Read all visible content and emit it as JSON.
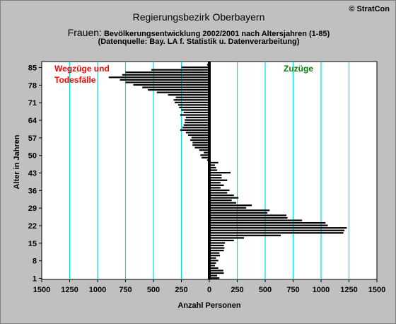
{
  "header": {
    "title": "Regierungsbezirk Oberbayern",
    "subtitle_lead": "Frauen:",
    "subtitle_rest": " Bevölkerungsentwicklung  2002/2001 nach Altersjahren (1-85)",
    "source": "(Datenquelle: Bay. LA f. Statistik u. Datenverarbeitung)",
    "copyright": "© StratCon"
  },
  "colors": {
    "background": "#c0c0c0",
    "plot": "#ffffff",
    "bar": "#000000",
    "gridline": "#00e0e0",
    "left_label": "#ff0000",
    "right_label": "#008000"
  },
  "chart_data": {
    "type": "bar",
    "orientation": "horizontal",
    "title": "Regierungsbezirk Oberbayern",
    "xlabel": "Anzahl Personen",
    "ylabel": "Alter in Jahren",
    "xlim": [
      -1500,
      1500
    ],
    "ylim": [
      1,
      86
    ],
    "x_ticks": [
      -1500,
      -1250,
      -1000,
      -750,
      -500,
      -250,
      0,
      250,
      500,
      750,
      1000,
      1250,
      1500
    ],
    "x_tick_labels": [
      "1500",
      "1250",
      "1000",
      "750",
      "500",
      "250",
      "0",
      "250",
      "500",
      "750",
      "1000",
      "1250",
      "1500"
    ],
    "y_ticks": [
      1,
      8,
      15,
      22,
      29,
      36,
      43,
      50,
      57,
      64,
      71,
      78,
      85
    ],
    "grid": "vertical",
    "annotations": [
      {
        "text": "Wegzüge und",
        "position": "top-left",
        "color": "#ff0000"
      },
      {
        "text": "Todesfälle",
        "position": "top-left",
        "color": "#ff0000"
      },
      {
        "text": "Zuzüge",
        "position": "top-right",
        "color": "#008000"
      }
    ],
    "series": [
      {
        "ages": [
          1,
          2,
          3,
          4,
          5,
          6,
          7,
          8,
          9,
          10,
          11,
          12,
          13,
          14,
          15,
          16,
          17,
          18,
          19,
          20,
          21,
          22,
          23,
          24,
          25,
          26,
          27,
          28,
          29,
          30,
          31,
          32,
          33,
          34,
          35,
          36,
          37,
          38,
          39,
          40,
          41,
          42,
          43,
          44,
          45,
          46,
          47,
          48,
          49,
          50,
          51,
          52,
          53,
          54,
          55,
          56,
          57,
          58,
          59,
          60,
          61,
          62,
          63,
          64,
          65,
          66,
          67,
          68,
          69,
          70,
          71,
          72,
          73,
          74,
          75,
          76,
          77,
          78,
          79,
          80,
          81,
          82,
          83,
          84,
          85,
          86
        ],
        "values": [
          90,
          70,
          130,
          125,
          80,
          50,
          60,
          80,
          60,
          95,
          90,
          130,
          135,
          130,
          140,
          220,
          310,
          640,
          1200,
          1210,
          1230,
          1060,
          1040,
          830,
          700,
          690,
          520,
          540,
          330,
          380,
          240,
          200,
          260,
          220,
          160,
          180,
          100,
          130,
          100,
          160,
          110,
          110,
          190,
          70,
          60,
          50,
          80,
          -20,
          -70,
          -80,
          -50,
          -90,
          -130,
          -150,
          -150,
          -170,
          -160,
          -190,
          -210,
          -260,
          -240,
          -230,
          -220,
          -220,
          -210,
          -260,
          -230,
          -250,
          -270,
          -280,
          -310,
          -320,
          -300,
          -370,
          -470,
          -550,
          -600,
          -680,
          -750,
          -800,
          -900,
          -780,
          -750,
          -520,
          -250,
          -20
        ]
      }
    ]
  }
}
